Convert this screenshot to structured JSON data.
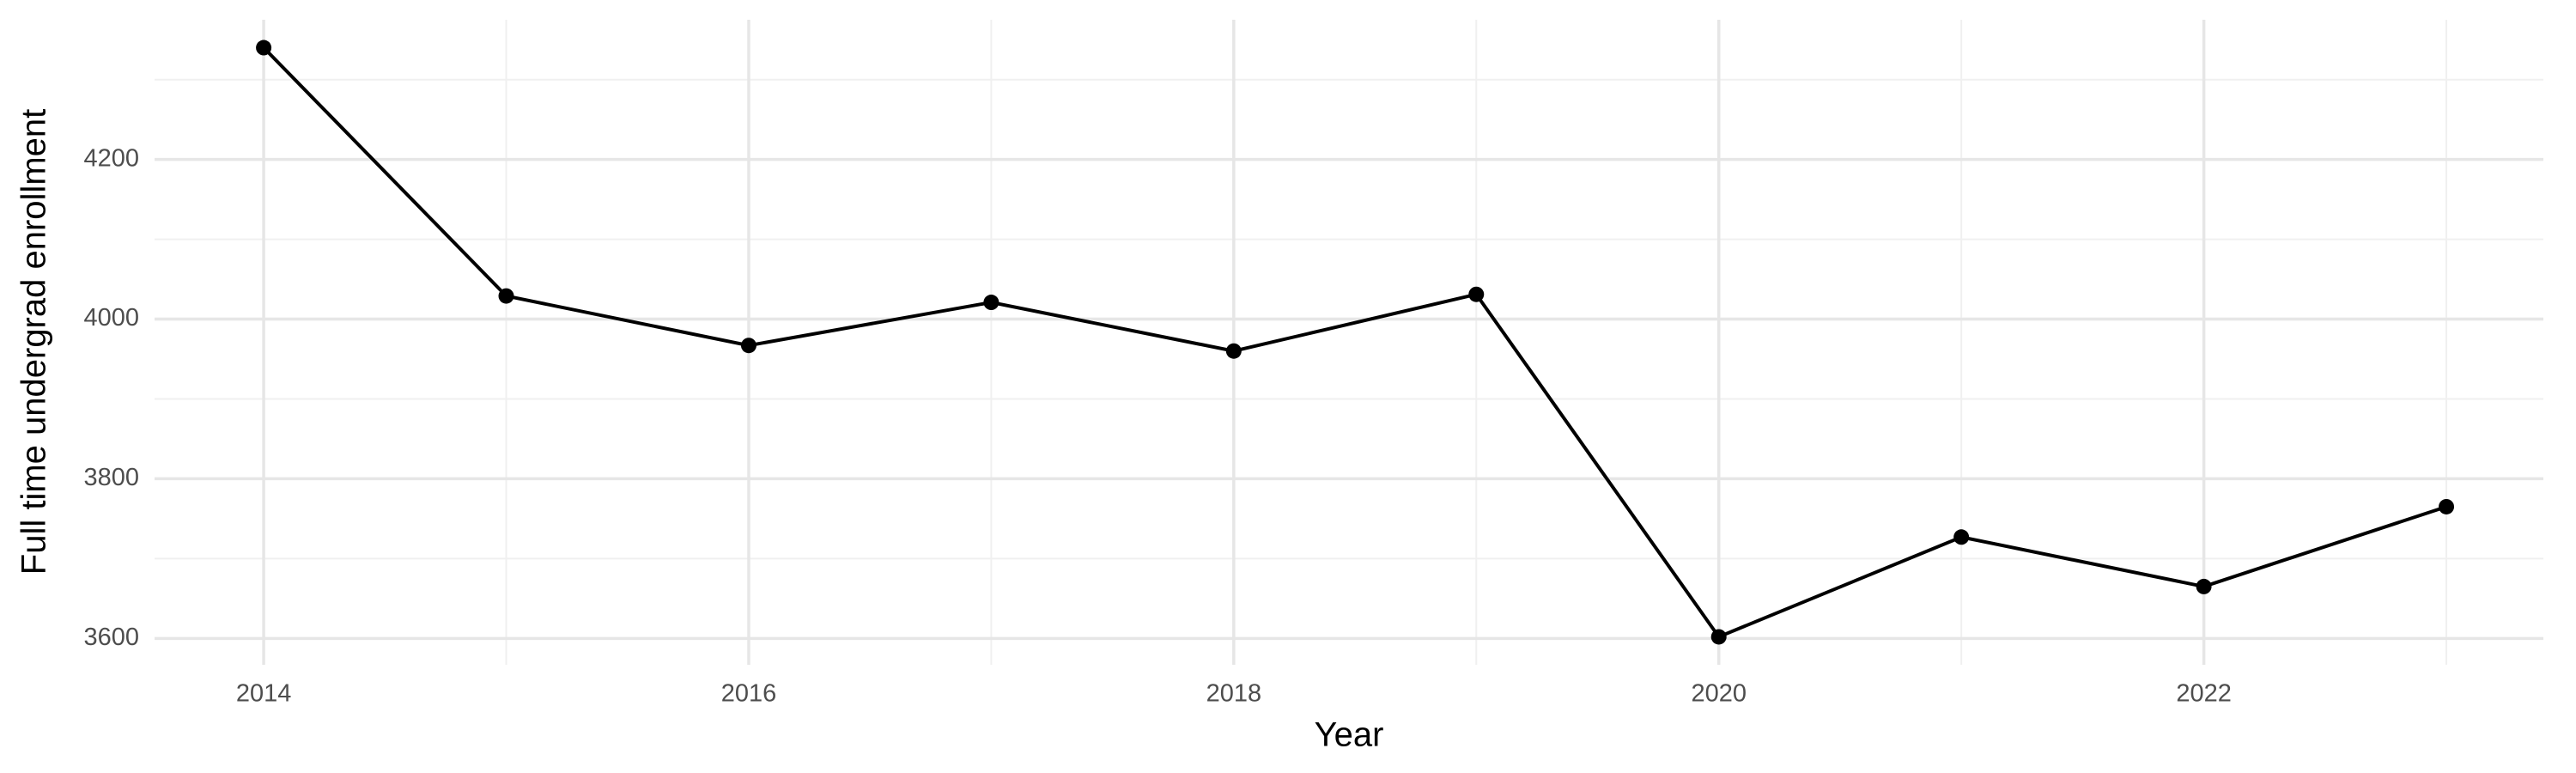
{
  "chart_data": {
    "type": "line",
    "xlabel": "Year",
    "ylabel": "Full time undergrad enrollment",
    "x": [
      2014,
      2015,
      2016,
      2017,
      2018,
      2019,
      2020,
      2021,
      2022,
      2023
    ],
    "series": [
      {
        "color": "#000000",
        "values": [
          4340,
          4029,
          3967,
          4021,
          3960,
          4031,
          3602,
          3727,
          3665,
          3765
        ]
      }
    ],
    "xlim": [
      2013.55,
      2023.4
    ],
    "xticks": [
      2014,
      2016,
      2018,
      2020,
      2022
    ],
    "xminor": [
      2015,
      2017,
      2019,
      2021,
      2023
    ],
    "ylim": [
      3567,
      4375
    ],
    "yticks": [
      3600,
      3800,
      4000,
      4200
    ],
    "yminor": [
      3700,
      3900,
      4100,
      4300
    ],
    "grid": true
  }
}
